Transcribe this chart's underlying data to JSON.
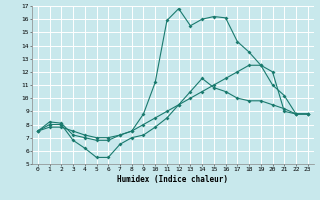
{
  "xlabel": "Humidex (Indice chaleur)",
  "bg_color": "#c8e8ec",
  "grid_color": "#ffffff",
  "line_color": "#1a7a6e",
  "xlim": [
    -0.5,
    23.5
  ],
  "ylim": [
    5,
    17
  ],
  "xticks": [
    0,
    1,
    2,
    3,
    4,
    5,
    6,
    7,
    8,
    9,
    10,
    11,
    12,
    13,
    14,
    15,
    16,
    17,
    18,
    19,
    20,
    21,
    22,
    23
  ],
  "yticks": [
    5,
    6,
    7,
    8,
    9,
    10,
    11,
    12,
    13,
    14,
    15,
    16,
    17
  ],
  "line1": {
    "x": [
      0,
      1,
      2,
      3,
      4,
      5,
      6,
      7,
      8,
      9,
      10,
      11,
      12,
      13,
      14,
      15,
      16,
      17,
      18,
      19,
      20,
      21,
      22,
      23
    ],
    "y": [
      7.5,
      8.0,
      8.0,
      6.8,
      6.2,
      5.5,
      5.5,
      6.5,
      7.0,
      7.2,
      7.8,
      8.5,
      9.5,
      10.5,
      11.5,
      10.8,
      10.5,
      10.0,
      9.8,
      9.8,
      9.5,
      9.2,
      8.8,
      8.8
    ]
  },
  "line2": {
    "x": [
      0,
      1,
      2,
      3,
      4,
      5,
      6,
      7,
      8,
      9,
      10,
      11,
      12,
      13,
      14,
      15,
      16,
      17,
      18,
      19,
      20,
      21,
      22,
      23
    ],
    "y": [
      7.5,
      8.2,
      8.1,
      7.2,
      7.0,
      6.8,
      6.8,
      7.2,
      7.5,
      8.8,
      11.2,
      15.9,
      16.8,
      15.5,
      16.0,
      16.2,
      16.1,
      14.3,
      13.5,
      12.5,
      11.0,
      10.2,
      8.8,
      8.8
    ]
  },
  "line3": {
    "x": [
      0,
      1,
      2,
      3,
      4,
      5,
      6,
      7,
      8,
      9,
      10,
      11,
      12,
      13,
      14,
      15,
      16,
      17,
      18,
      19,
      20,
      21,
      22,
      23
    ],
    "y": [
      7.5,
      7.8,
      7.8,
      7.5,
      7.2,
      7.0,
      7.0,
      7.2,
      7.5,
      8.0,
      8.5,
      9.0,
      9.5,
      10.0,
      10.5,
      11.0,
      11.5,
      12.0,
      12.5,
      12.5,
      12.0,
      9.0,
      8.8,
      8.8
    ]
  }
}
